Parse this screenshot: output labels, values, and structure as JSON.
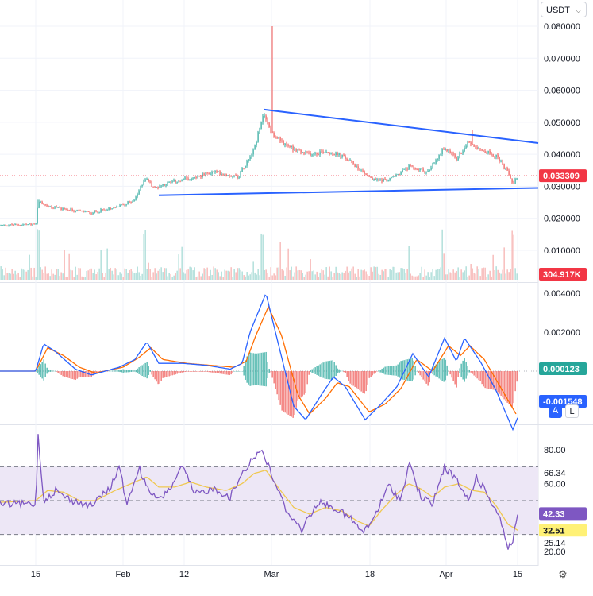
{
  "header": {
    "currency_label": "USDT"
  },
  "buttons": {
    "auto_label": "A",
    "log_label": "L"
  },
  "colors": {
    "up": "#26a69a",
    "down": "#ef5350",
    "trendline": "#2962ff",
    "macd": "#2962ff",
    "signal": "#ff6d00",
    "rsi": "#7e57c2",
    "rsi_ma": "#f7d774",
    "rsi_band": "#ede7f6",
    "last_price": "#f23645",
    "macd_badge": "#26a69a",
    "signal_badge": "#2962ff",
    "rsi_badge": "#7e57c2",
    "rsi_ma_badge": "#fff176"
  },
  "chart_data": [
    {
      "type": "candlestick",
      "pane": "price",
      "y_ticks": [
        "0.080000",
        "0.070000",
        "0.060000",
        "0.050000",
        "0.040000",
        "0.030000",
        "0.020000",
        "0.010000"
      ],
      "ylim": [
        0.0,
        0.082
      ],
      "last_price": "0.033309",
      "anchors": [
        [
          0,
          0.0178
        ],
        [
          45,
          0.0182
        ],
        [
          48,
          0.0255
        ],
        [
          60,
          0.0238
        ],
        [
          90,
          0.0225
        ],
        [
          115,
          0.0218
        ],
        [
          150,
          0.0238
        ],
        [
          170,
          0.0258
        ],
        [
          182,
          0.0325
        ],
        [
          195,
          0.0295
        ],
        [
          210,
          0.031
        ],
        [
          240,
          0.0325
        ],
        [
          270,
          0.0345
        ],
        [
          300,
          0.033
        ],
        [
          320,
          0.042
        ],
        [
          332,
          0.052
        ],
        [
          345,
          0.046
        ],
        [
          360,
          0.043
        ],
        [
          385,
          0.04
        ],
        [
          410,
          0.041
        ],
        [
          430,
          0.0395
        ],
        [
          445,
          0.037
        ],
        [
          470,
          0.032
        ],
        [
          490,
          0.032
        ],
        [
          515,
          0.036
        ],
        [
          540,
          0.0345
        ],
        [
          560,
          0.042
        ],
        [
          575,
          0.0385
        ],
        [
          590,
          0.044
        ],
        [
          610,
          0.041
        ],
        [
          625,
          0.0395
        ],
        [
          640,
          0.034
        ],
        [
          646,
          0.031
        ],
        [
          652,
          0.0333
        ]
      ],
      "spikes": [
        [
          343,
          0.08
        ],
        [
          48,
          0.0258
        ],
        [
          595,
          0.0475
        ]
      ],
      "trendlines": [
        {
          "from": [
            332,
            0.054
          ],
          "to": [
            678,
            0.0435
          ]
        },
        {
          "from": [
            200,
            0.0272
          ],
          "to": [
            678,
            0.0295
          ]
        }
      ]
    },
    {
      "type": "bar",
      "pane": "volume",
      "last_volume": "304.917K"
    },
    {
      "type": "line",
      "pane": "macd",
      "y_ticks": [
        "0.004000",
        "0.002000"
      ],
      "ylim": [
        -0.0053,
        0.0045
      ],
      "macd_value": "0.000123",
      "signal_value": "-0.001548",
      "macd_anchors": [
        [
          0,
          0.0
        ],
        [
          45,
          0.0
        ],
        [
          55,
          0.0014
        ],
        [
          70,
          0.001
        ],
        [
          95,
          0.0001
        ],
        [
          115,
          -0.0002
        ],
        [
          150,
          0.0002
        ],
        [
          170,
          0.0006
        ],
        [
          185,
          0.0015
        ],
        [
          200,
          0.0004
        ],
        [
          230,
          0.0004
        ],
        [
          260,
          0.0003
        ],
        [
          290,
          0.0001
        ],
        [
          305,
          0.0004
        ],
        [
          315,
          0.002
        ],
        [
          335,
          0.004
        ],
        [
          350,
          0.0015
        ],
        [
          370,
          -0.0018
        ],
        [
          385,
          -0.0025
        ],
        [
          405,
          -0.0012
        ],
        [
          420,
          -0.0003
        ],
        [
          435,
          -0.0008
        ],
        [
          460,
          -0.0025
        ],
        [
          480,
          -0.0017
        ],
        [
          500,
          -0.0008
        ],
        [
          520,
          0.0009
        ],
        [
          540,
          -0.0003
        ],
        [
          560,
          0.0017
        ],
        [
          575,
          0.0005
        ],
        [
          585,
          0.0017
        ],
        [
          605,
          0.0005
        ],
        [
          625,
          -0.001
        ],
        [
          646,
          -0.003
        ],
        [
          652,
          -0.0024
        ]
      ],
      "signal_anchors": [
        [
          0,
          0.0
        ],
        [
          45,
          0.0
        ],
        [
          60,
          0.0012
        ],
        [
          80,
          0.0008
        ],
        [
          100,
          0.0002
        ],
        [
          120,
          -0.0001
        ],
        [
          155,
          0.0002
        ],
        [
          175,
          0.0007
        ],
        [
          190,
          0.0012
        ],
        [
          205,
          0.0006
        ],
        [
          235,
          0.0004
        ],
        [
          265,
          0.0003
        ],
        [
          295,
          0.0002
        ],
        [
          310,
          0.0005
        ],
        [
          322,
          0.0018
        ],
        [
          338,
          0.0033
        ],
        [
          355,
          0.0018
        ],
        [
          375,
          -0.0012
        ],
        [
          390,
          -0.0022
        ],
        [
          410,
          -0.0014
        ],
        [
          425,
          -0.0006
        ],
        [
          440,
          -0.0008
        ],
        [
          465,
          -0.0021
        ],
        [
          485,
          -0.0017
        ],
        [
          505,
          -0.0009
        ],
        [
          525,
          0.0006
        ],
        [
          545,
          0.0
        ],
        [
          565,
          0.0013
        ],
        [
          580,
          0.0008
        ],
        [
          592,
          0.0013
        ],
        [
          610,
          0.0006
        ],
        [
          630,
          -0.0008
        ],
        [
          650,
          -0.0022
        ]
      ]
    },
    {
      "type": "line",
      "pane": "rsi",
      "y_ticks": [
        "80.00",
        "66.34",
        "60.00",
        "25.14",
        "20.00"
      ],
      "ylim": [
        15,
        95
      ],
      "bands": [
        70,
        50,
        30
      ],
      "rsi_value": "42.33",
      "rsi_ma_value": "32.51",
      "rsi_anchors": [
        [
          0,
          48
        ],
        [
          45,
          48
        ],
        [
          48,
          88
        ],
        [
          55,
          50
        ],
        [
          70,
          56
        ],
        [
          90,
          50
        ],
        [
          115,
          47
        ],
        [
          140,
          58
        ],
        [
          150,
          71
        ],
        [
          160,
          47
        ],
        [
          175,
          70
        ],
        [
          185,
          57
        ],
        [
          200,
          50
        ],
        [
          215,
          58
        ],
        [
          230,
          70
        ],
        [
          245,
          54
        ],
        [
          270,
          57
        ],
        [
          290,
          52
        ],
        [
          305,
          66
        ],
        [
          318,
          75
        ],
        [
          330,
          80
        ],
        [
          345,
          62
        ],
        [
          360,
          45
        ],
        [
          380,
          33
        ],
        [
          400,
          49
        ],
        [
          420,
          46
        ],
        [
          440,
          40
        ],
        [
          458,
          31
        ],
        [
          470,
          39
        ],
        [
          490,
          59
        ],
        [
          505,
          50
        ],
        [
          515,
          73
        ],
        [
          530,
          52
        ],
        [
          545,
          48
        ],
        [
          560,
          70
        ],
        [
          575,
          62
        ],
        [
          590,
          50
        ],
        [
          600,
          64
        ],
        [
          615,
          53
        ],
        [
          630,
          40
        ],
        [
          640,
          22
        ],
        [
          646,
          27
        ],
        [
          652,
          42
        ]
      ],
      "rsi_ma_anchors": [
        [
          0,
          49
        ],
        [
          45,
          50
        ],
        [
          60,
          56
        ],
        [
          80,
          55
        ],
        [
          100,
          50
        ],
        [
          120,
          50
        ],
        [
          145,
          56
        ],
        [
          165,
          60
        ],
        [
          185,
          64
        ],
        [
          200,
          58
        ],
        [
          220,
          58
        ],
        [
          240,
          61
        ],
        [
          260,
          58
        ],
        [
          285,
          56
        ],
        [
          305,
          60
        ],
        [
          320,
          66
        ],
        [
          335,
          68
        ],
        [
          350,
          58
        ],
        [
          370,
          46
        ],
        [
          390,
          42
        ],
        [
          410,
          46
        ],
        [
          430,
          44
        ],
        [
          450,
          38
        ],
        [
          465,
          35
        ],
        [
          480,
          44
        ],
        [
          500,
          54
        ],
        [
          515,
          60
        ],
        [
          530,
          57
        ],
        [
          545,
          52
        ],
        [
          560,
          58
        ],
        [
          578,
          60
        ],
        [
          595,
          56
        ],
        [
          610,
          55
        ],
        [
          625,
          47
        ],
        [
          640,
          36
        ],
        [
          652,
          32.5
        ]
      ]
    },
    {
      "type": "axis",
      "pane": "time",
      "x_ticks": [
        [
          45,
          "15"
        ],
        [
          155,
          "Feb"
        ],
        [
          232,
          "12"
        ],
        [
          342,
          "Mar"
        ],
        [
          466,
          "18"
        ],
        [
          562,
          "Apr"
        ],
        [
          652,
          "15"
        ]
      ]
    }
  ]
}
